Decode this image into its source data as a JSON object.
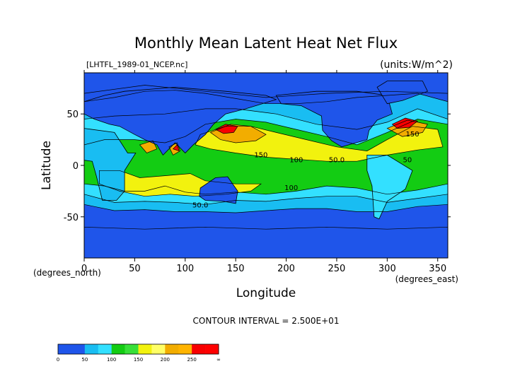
{
  "chart_data": {
    "type": "heatmap",
    "title": "Monthly Mean Latent Heat Net Flux",
    "subtitle_left": "[LHTFL_1989-01_NCEP.nc]",
    "units_label": "(units:W/m^2)",
    "xlabel": "Longitude",
    "ylabel": "Latitude",
    "x_unit_label": "(degrees_east)",
    "y_unit_label": "(degrees_north)",
    "xlim": [
      0,
      360
    ],
    "ylim": [
      -90,
      90
    ],
    "xticks": [
      0,
      50,
      100,
      150,
      200,
      250,
      300,
      350
    ],
    "yticks": [
      -50,
      0,
      50
    ],
    "contour_interval_text": "CONTOUR INTERVAL = 2.500E+01",
    "contour_levels": [
      0,
      25,
      50,
      75,
      100,
      125,
      150,
      175,
      200,
      225,
      250,
      275
    ],
    "contour_labels": [
      {
        "text": "150",
        "x": 175,
        "y": 8
      },
      {
        "text": "100",
        "x": 210,
        "y": 3
      },
      {
        "text": "50.0",
        "x": 250,
        "y": 3
      },
      {
        "text": "100",
        "x": 205,
        "y": -24
      },
      {
        "text": "50.0",
        "x": 115,
        "y": -41
      },
      {
        "text": "150",
        "x": 325,
        "y": 28
      },
      {
        "text": "50",
        "x": 320,
        "y": 3
      }
    ],
    "colorbar": {
      "bins": [
        {
          "from": 0,
          "to": 25,
          "color": "#1f55ea"
        },
        {
          "from": 25,
          "to": 50,
          "color": "#1f55ea"
        },
        {
          "from": 50,
          "to": 75,
          "color": "#19bdf2"
        },
        {
          "from": 75,
          "to": 100,
          "color": "#33e0ff"
        },
        {
          "from": 100,
          "to": 125,
          "color": "#13cc13"
        },
        {
          "from": 125,
          "to": 150,
          "color": "#38e038"
        },
        {
          "from": 150,
          "to": 175,
          "color": "#f2f20e"
        },
        {
          "from": 175,
          "to": 200,
          "color": "#ffff66"
        },
        {
          "from": 200,
          "to": 225,
          "color": "#f2ad00"
        },
        {
          "from": 225,
          "to": 250,
          "color": "#ffb400"
        },
        {
          "from": 250,
          "to": 275,
          "color": "#f80000"
        },
        {
          "from": 275,
          "to": "inf",
          "color": "#ff0000"
        }
      ],
      "tick_labels": [
        "0",
        "50",
        "100",
        "150",
        "200",
        "250",
        "∞"
      ]
    },
    "regions": [
      {
        "level": 50,
        "points": [
          [
            0,
            62
          ],
          [
            30,
            66
          ],
          [
            60,
            72
          ],
          [
            90,
            73
          ],
          [
            120,
            70
          ],
          [
            150,
            65
          ],
          [
            180,
            60
          ],
          [
            210,
            60
          ],
          [
            240,
            62
          ],
          [
            270,
            66
          ],
          [
            300,
            68
          ],
          [
            330,
            70
          ],
          [
            360,
            62
          ],
          [
            360,
            -38
          ],
          [
            330,
            -40
          ],
          [
            300,
            -45
          ],
          [
            270,
            -45
          ],
          [
            240,
            -42
          ],
          [
            210,
            -42
          ],
          [
            180,
            -44
          ],
          [
            150,
            -46
          ],
          [
            120,
            -45
          ],
          [
            90,
            -45
          ],
          [
            60,
            -43
          ],
          [
            30,
            -44
          ],
          [
            0,
            -38
          ]
        ]
      },
      {
        "level": 75,
        "points": [
          [
            0,
            45
          ],
          [
            30,
            48
          ],
          [
            80,
            50
          ],
          [
            120,
            55
          ],
          [
            150,
            55
          ],
          [
            190,
            50
          ],
          [
            230,
            40
          ],
          [
            270,
            35
          ],
          [
            300,
            42
          ],
          [
            330,
            55
          ],
          [
            360,
            45
          ],
          [
            360,
            -28
          ],
          [
            330,
            -32
          ],
          [
            300,
            -36
          ],
          [
            270,
            -30
          ],
          [
            240,
            -30
          ],
          [
            210,
            -32
          ],
          [
            180,
            -35
          ],
          [
            150,
            -34
          ],
          [
            120,
            -38
          ],
          [
            90,
            -36
          ],
          [
            60,
            -35
          ],
          [
            30,
            -36
          ],
          [
            0,
            -28
          ]
        ]
      },
      {
        "level": 100,
        "points": [
          [
            120,
            40
          ],
          [
            150,
            45
          ],
          [
            180,
            42
          ],
          [
            210,
            35
          ],
          [
            240,
            28
          ],
          [
            270,
            20
          ],
          [
            300,
            32
          ],
          [
            330,
            45
          ],
          [
            360,
            40
          ],
          [
            360,
            -18
          ],
          [
            330,
            -24
          ],
          [
            300,
            -28
          ],
          [
            270,
            -22
          ],
          [
            240,
            -20
          ],
          [
            210,
            -25
          ],
          [
            180,
            -28
          ],
          [
            150,
            -26
          ],
          [
            120,
            -28
          ],
          [
            100,
            -26
          ],
          [
            80,
            -20
          ],
          [
            60,
            -25
          ],
          [
            40,
            -25
          ],
          [
            20,
            -20
          ],
          [
            0,
            -18
          ],
          [
            0,
            20
          ],
          [
            20,
            25
          ],
          [
            50,
            25
          ],
          [
            80,
            22
          ],
          [
            100,
            28
          ]
        ]
      },
      {
        "level": 150,
        "points": [
          [
            115,
            30
          ],
          [
            140,
            38
          ],
          [
            165,
            38
          ],
          [
            190,
            32
          ],
          [
            220,
            25
          ],
          [
            250,
            18
          ],
          [
            280,
            14
          ],
          [
            300,
            25
          ],
          [
            325,
            38
          ],
          [
            350,
            35
          ],
          [
            355,
            18
          ],
          [
            330,
            15
          ],
          [
            300,
            10
          ],
          [
            270,
            4
          ],
          [
            240,
            4
          ],
          [
            210,
            6
          ],
          [
            180,
            8
          ],
          [
            150,
            12
          ],
          [
            125,
            16
          ],
          [
            110,
            20
          ]
        ]
      },
      {
        "level": 150,
        "points": [
          [
            15,
            -5
          ],
          [
            35,
            -5
          ],
          [
            55,
            -12
          ],
          [
            80,
            -10
          ],
          [
            105,
            -8
          ],
          [
            120,
            -15
          ],
          [
            150,
            -18
          ],
          [
            175,
            -18
          ],
          [
            165,
            -25
          ],
          [
            140,
            -28
          ],
          [
            110,
            -30
          ],
          [
            85,
            -28
          ],
          [
            60,
            -30
          ],
          [
            35,
            -25
          ],
          [
            15,
            -18
          ]
        ]
      },
      {
        "level": 200,
        "points": [
          [
            125,
            32
          ],
          [
            145,
            40
          ],
          [
            165,
            38
          ],
          [
            180,
            30
          ],
          [
            170,
            24
          ],
          [
            150,
            22
          ],
          [
            135,
            25
          ]
        ]
      },
      {
        "level": 200,
        "points": [
          [
            300,
            36
          ],
          [
            320,
            44
          ],
          [
            340,
            40
          ],
          [
            335,
            32
          ],
          [
            315,
            28
          ]
        ]
      },
      {
        "level": 200,
        "points": [
          [
            55,
            20
          ],
          [
            68,
            24
          ],
          [
            72,
            16
          ],
          [
            62,
            12
          ]
        ]
      },
      {
        "level": 200,
        "points": [
          [
            84,
            18
          ],
          [
            92,
            22
          ],
          [
            95,
            14
          ],
          [
            88,
            10
          ]
        ]
      },
      {
        "level": 250,
        "points": [
          [
            130,
            35
          ],
          [
            140,
            40
          ],
          [
            152,
            38
          ],
          [
            148,
            32
          ],
          [
            138,
            31
          ]
        ]
      },
      {
        "level": 250,
        "points": [
          [
            305,
            40
          ],
          [
            318,
            46
          ],
          [
            330,
            43
          ],
          [
            322,
            37
          ],
          [
            310,
            36
          ]
        ]
      },
      {
        "level": 250,
        "points": [
          [
            88,
            16
          ],
          [
            92,
            20
          ],
          [
            94,
            14
          ]
        ]
      },
      {
        "level": 25,
        "points": [
          [
            0,
            90
          ],
          [
            360,
            90
          ],
          [
            360,
            70
          ],
          [
            300,
            72
          ],
          [
            240,
            70
          ],
          [
            180,
            66
          ],
          [
            120,
            72
          ],
          [
            60,
            78
          ],
          [
            0,
            70
          ]
        ]
      },
      {
        "level": 25,
        "points": [
          [
            0,
            -90
          ],
          [
            360,
            -90
          ],
          [
            360,
            -60
          ],
          [
            300,
            -62
          ],
          [
            240,
            -60
          ],
          [
            180,
            -62
          ],
          [
            120,
            -60
          ],
          [
            60,
            -62
          ],
          [
            0,
            -60
          ]
        ]
      }
    ],
    "land_masks": [
      {
        "name": "Eurasia",
        "level": 25,
        "points": [
          [
            40,
            72
          ],
          [
            90,
            76
          ],
          [
            140,
            72
          ],
          [
            180,
            68
          ],
          [
            190,
            64
          ],
          [
            160,
            55
          ],
          [
            140,
            50
          ],
          [
            128,
            40
          ],
          [
            120,
            30
          ],
          [
            108,
            20
          ],
          [
            100,
            12
          ],
          [
            90,
            22
          ],
          [
            78,
            10
          ],
          [
            72,
            20
          ],
          [
            60,
            25
          ],
          [
            50,
            30
          ],
          [
            35,
            38
          ],
          [
            25,
            40
          ],
          [
            10,
            45
          ],
          [
            0,
            50
          ],
          [
            0,
            62
          ],
          [
            20,
            68
          ]
        ]
      },
      {
        "name": "Africa",
        "level": 50,
        "points": [
          [
            0,
            36
          ],
          [
            30,
            32
          ],
          [
            43,
            12
          ],
          [
            51,
            12
          ],
          [
            40,
            -5
          ],
          [
            40,
            -25
          ],
          [
            32,
            -34
          ],
          [
            18,
            -34
          ],
          [
            12,
            -10
          ],
          [
            8,
            4
          ],
          [
            0,
            5
          ]
        ]
      },
      {
        "name": "North America",
        "level": 25,
        "points": [
          [
            190,
            68
          ],
          [
            230,
            72
          ],
          [
            270,
            72
          ],
          [
            300,
            68
          ],
          [
            305,
            50
          ],
          [
            290,
            44
          ],
          [
            282,
            34
          ],
          [
            280,
            25
          ],
          [
            262,
            20
          ],
          [
            255,
            18
          ],
          [
            245,
            24
          ],
          [
            236,
            34
          ],
          [
            235,
            48
          ],
          [
            215,
            58
          ],
          [
            195,
            60
          ]
        ]
      },
      {
        "name": "South America",
        "level": 75,
        "points": [
          [
            280,
            10
          ],
          [
            300,
            10
          ],
          [
            325,
            -5
          ],
          [
            318,
            -23
          ],
          [
            300,
            -35
          ],
          [
            292,
            -52
          ],
          [
            287,
            -50
          ],
          [
            285,
            -20
          ],
          [
            280,
            -5
          ]
        ]
      },
      {
        "name": "Australia",
        "level": 25,
        "points": [
          [
            115,
            -22
          ],
          [
            130,
            -12
          ],
          [
            142,
            -11
          ],
          [
            152,
            -25
          ],
          [
            150,
            -37
          ],
          [
            138,
            -35
          ],
          [
            120,
            -34
          ],
          [
            114,
            -30
          ]
        ]
      },
      {
        "name": "Greenland",
        "level": 25,
        "points": [
          [
            300,
            60
          ],
          [
            315,
            63
          ],
          [
            340,
            72
          ],
          [
            335,
            82
          ],
          [
            300,
            82
          ],
          [
            290,
            76
          ]
        ]
      }
    ]
  }
}
